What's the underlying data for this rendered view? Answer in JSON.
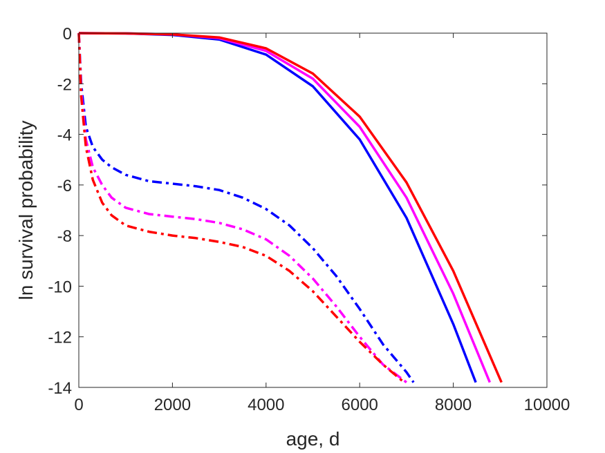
{
  "chart_data": {
    "type": "line",
    "title": "",
    "xlabel": "age, d",
    "ylabel": "ln survival probability",
    "xlim": [
      0,
      10000
    ],
    "ylim": [
      -14,
      0
    ],
    "xticks": [
      0,
      2000,
      4000,
      6000,
      8000,
      10000
    ],
    "yticks": [
      0,
      -2,
      -4,
      -6,
      -8,
      -10,
      -12,
      -14
    ],
    "xtick_labels": [
      "0",
      "2000",
      "4000",
      "6000",
      "8000",
      "10000"
    ],
    "ytick_labels": [
      "0",
      "-2",
      "-4",
      "-6",
      "-8",
      "-10",
      "-12",
      "-14"
    ],
    "grid": false,
    "legend": "none",
    "series": [
      {
        "color": "#0000ff",
        "style": "solid",
        "points": [
          [
            0,
            0
          ],
          [
            1000,
            -0.01
          ],
          [
            2000,
            -0.07
          ],
          [
            3000,
            -0.25
          ],
          [
            4000,
            -0.85
          ],
          [
            5000,
            -2.1
          ],
          [
            6000,
            -4.2
          ],
          [
            7000,
            -7.3
          ],
          [
            8000,
            -11.5
          ],
          [
            8480,
            -13.8
          ]
        ]
      },
      {
        "color": "#ff00ff",
        "style": "solid",
        "points": [
          [
            0,
            0
          ],
          [
            1000,
            -0.01
          ],
          [
            2000,
            -0.05
          ],
          [
            3000,
            -0.2
          ],
          [
            4000,
            -0.7
          ],
          [
            5000,
            -1.8
          ],
          [
            6000,
            -3.7
          ],
          [
            7000,
            -6.5
          ],
          [
            8000,
            -10.3
          ],
          [
            8780,
            -13.8
          ]
        ]
      },
      {
        "color": "#ff0000",
        "style": "solid",
        "points": [
          [
            0,
            0
          ],
          [
            1000,
            -0.01
          ],
          [
            2000,
            -0.05
          ],
          [
            3000,
            -0.17
          ],
          [
            4000,
            -0.6
          ],
          [
            5000,
            -1.6
          ],
          [
            6000,
            -3.3
          ],
          [
            7000,
            -5.9
          ],
          [
            8000,
            -9.4
          ],
          [
            9030,
            -13.8
          ]
        ]
      },
      {
        "color": "#0000ff",
        "style": "dashdot",
        "points": [
          [
            0,
            0
          ],
          [
            50,
            -2
          ],
          [
            150,
            -3.7
          ],
          [
            300,
            -4.5
          ],
          [
            500,
            -5.0
          ],
          [
            700,
            -5.3
          ],
          [
            1000,
            -5.6
          ],
          [
            1500,
            -5.85
          ],
          [
            2000,
            -5.95
          ],
          [
            2500,
            -6.05
          ],
          [
            3000,
            -6.2
          ],
          [
            3500,
            -6.5
          ],
          [
            4000,
            -6.95
          ],
          [
            4500,
            -7.6
          ],
          [
            5000,
            -8.5
          ],
          [
            5500,
            -9.6
          ],
          [
            6000,
            -10.9
          ],
          [
            6500,
            -12.3
          ],
          [
            7000,
            -13.4
          ],
          [
            7150,
            -13.8
          ]
        ]
      },
      {
        "color": "#ff00ff",
        "style": "dashdot",
        "points": [
          [
            0,
            0
          ],
          [
            50,
            -2.3
          ],
          [
            150,
            -4.2
          ],
          [
            300,
            -5.3
          ],
          [
            500,
            -6.0
          ],
          [
            700,
            -6.5
          ],
          [
            1000,
            -6.9
          ],
          [
            1500,
            -7.15
          ],
          [
            2000,
            -7.25
          ],
          [
            2500,
            -7.35
          ],
          [
            3000,
            -7.5
          ],
          [
            3500,
            -7.75
          ],
          [
            4000,
            -8.15
          ],
          [
            4500,
            -8.8
          ],
          [
            5000,
            -9.7
          ],
          [
            5500,
            -10.8
          ],
          [
            6000,
            -12.0
          ],
          [
            6500,
            -13.1
          ],
          [
            7000,
            -13.8
          ]
        ]
      },
      {
        "color": "#ff0000",
        "style": "dashdot",
        "points": [
          [
            0,
            0
          ],
          [
            50,
            -2.5
          ],
          [
            150,
            -4.5
          ],
          [
            300,
            -5.8
          ],
          [
            500,
            -6.7
          ],
          [
            700,
            -7.2
          ],
          [
            1000,
            -7.6
          ],
          [
            1500,
            -7.85
          ],
          [
            2000,
            -8.0
          ],
          [
            2500,
            -8.1
          ],
          [
            3000,
            -8.25
          ],
          [
            3500,
            -8.45
          ],
          [
            4000,
            -8.8
          ],
          [
            4500,
            -9.4
          ],
          [
            5000,
            -10.2
          ],
          [
            5500,
            -11.2
          ],
          [
            6000,
            -12.2
          ],
          [
            6500,
            -13.1
          ],
          [
            6950,
            -13.8
          ]
        ]
      }
    ]
  }
}
